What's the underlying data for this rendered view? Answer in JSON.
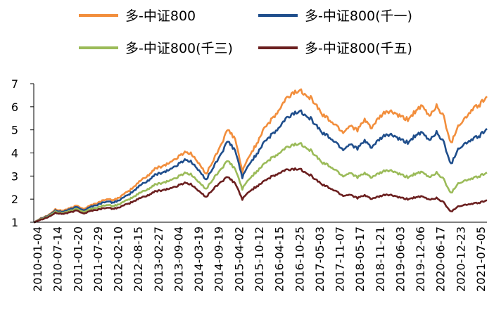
{
  "chart_data": {
    "type": "line",
    "title": "",
    "xlabel": "",
    "ylabel": "",
    "ylim": [
      1,
      7
    ],
    "yticks": [
      1,
      2,
      3,
      4,
      5,
      6,
      7
    ],
    "grid": false,
    "legend_position": "top",
    "x_tick_labels": [
      "2010-01-04",
      "2010-07-14",
      "2011-01-20",
      "2011-07-29",
      "2012-02-10",
      "2012-08-15",
      "2013-02-27",
      "2013-09-04",
      "2014-03-19",
      "2014-09-19",
      "2015-04-02",
      "2015-10-12",
      "2016-04-15",
      "2016-10-25",
      "2017-05-03",
      "2017-11-07",
      "2018-05-17",
      "2018-11-21",
      "2019-06-03",
      "2019-12-06",
      "2020-06-17",
      "2020-12-23",
      "2021-07-05"
    ],
    "series": [
      {
        "name": "多-中证800",
        "color": "#F28E3C",
        "values": [
          1.0,
          1.18,
          1.3,
          1.55,
          1.5,
          1.6,
          1.72,
          1.58,
          1.75,
          1.85,
          2.0,
          1.95,
          2.1,
          2.3,
          2.55,
          2.85,
          3.05,
          3.35,
          3.45,
          3.6,
          3.8,
          4.05,
          3.95,
          3.5,
          3.1,
          3.7,
          4.35,
          5.0,
          4.6,
          3.2,
          3.9,
          4.4,
          5.1,
          5.4,
          5.8,
          6.3,
          6.6,
          6.7,
          6.55,
          6.2,
          5.7,
          5.45,
          5.2,
          4.9,
          5.2,
          5.0,
          5.4,
          5.1,
          5.5,
          5.8,
          5.75,
          5.55,
          5.45,
          5.8,
          6.0,
          5.6,
          6.05,
          5.55,
          4.4,
          5.2,
          5.5,
          5.9,
          6.1,
          6.45
        ]
      },
      {
        "name": "多-中证800(千一)",
        "color": "#1F4E8C",
        "values": [
          1.0,
          1.16,
          1.28,
          1.5,
          1.45,
          1.55,
          1.66,
          1.52,
          1.68,
          1.77,
          1.9,
          1.85,
          1.98,
          2.15,
          2.38,
          2.65,
          2.82,
          3.08,
          3.17,
          3.3,
          3.48,
          3.72,
          3.6,
          3.2,
          2.85,
          3.4,
          3.95,
          4.5,
          4.1,
          2.95,
          3.55,
          3.95,
          4.5,
          4.75,
          5.05,
          5.45,
          5.7,
          5.8,
          5.65,
          5.3,
          4.9,
          4.7,
          4.45,
          4.15,
          4.4,
          4.2,
          4.5,
          4.25,
          4.55,
          4.8,
          4.75,
          4.55,
          4.45,
          4.75,
          4.85,
          4.55,
          4.9,
          4.45,
          3.5,
          4.2,
          4.4,
          4.6,
          4.75,
          5.05
        ]
      },
      {
        "name": "多-中证800(千三)",
        "color": "#9BBB59",
        "values": [
          1.0,
          1.14,
          1.25,
          1.45,
          1.4,
          1.48,
          1.58,
          1.45,
          1.58,
          1.65,
          1.75,
          1.7,
          1.8,
          1.95,
          2.12,
          2.32,
          2.45,
          2.65,
          2.72,
          2.82,
          2.95,
          3.15,
          3.05,
          2.7,
          2.45,
          2.9,
          3.3,
          3.65,
          3.3,
          2.45,
          2.9,
          3.2,
          3.55,
          3.75,
          3.95,
          4.2,
          4.35,
          4.4,
          4.25,
          3.95,
          3.6,
          3.45,
          3.25,
          3.0,
          3.15,
          2.95,
          3.1,
          2.95,
          3.1,
          3.25,
          3.2,
          3.05,
          2.95,
          3.1,
          3.15,
          2.95,
          3.15,
          2.85,
          2.25,
          2.7,
          2.8,
          2.9,
          3.0,
          3.15
        ]
      },
      {
        "name": "多-中证800(千五)",
        "color": "#6B1F1F",
        "values": [
          1.0,
          1.12,
          1.22,
          1.4,
          1.36,
          1.42,
          1.51,
          1.38,
          1.5,
          1.55,
          1.63,
          1.58,
          1.66,
          1.78,
          1.92,
          2.08,
          2.18,
          2.35,
          2.4,
          2.47,
          2.57,
          2.72,
          2.62,
          2.32,
          2.1,
          2.45,
          2.75,
          2.95,
          2.68,
          2.0,
          2.35,
          2.55,
          2.8,
          2.95,
          3.1,
          3.25,
          3.3,
          3.3,
          3.15,
          2.9,
          2.65,
          2.5,
          2.35,
          2.15,
          2.2,
          2.05,
          2.15,
          2.02,
          2.1,
          2.2,
          2.15,
          2.05,
          2.0,
          2.08,
          2.1,
          1.98,
          2.05,
          1.85,
          1.45,
          1.7,
          1.75,
          1.8,
          1.85,
          1.95
        ]
      }
    ]
  }
}
